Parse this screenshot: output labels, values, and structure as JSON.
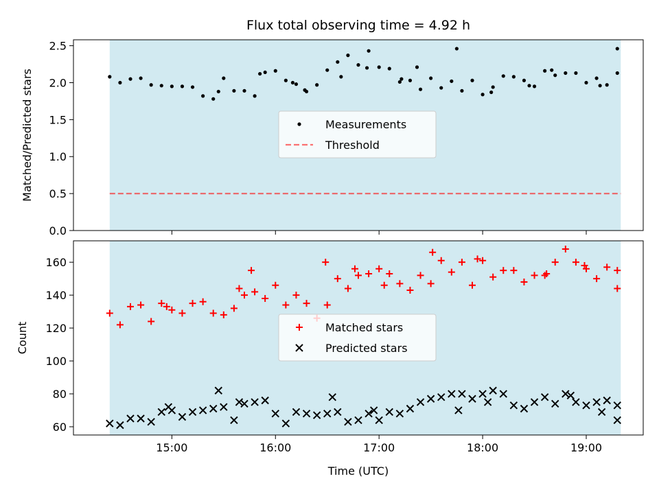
{
  "figure": {
    "title": "Flux total observing time = 4.92 h"
  },
  "colors": {
    "shade": "#add8e6",
    "measurement": "#000000",
    "threshold": "#ff0000",
    "matched": "#ff0000",
    "predicted": "#000000"
  },
  "chart_data": [
    {
      "type": "scatter",
      "ylabel": "Matched/Predicted stars",
      "xlabel": "",
      "xlim": [
        "14:03",
        "19:33"
      ],
      "ylim": [
        0,
        2.58
      ],
      "yticks": [
        0.0,
        0.5,
        1.0,
        1.5,
        2.0,
        2.5
      ],
      "ytick_labels": [
        "0.0",
        "0.5",
        "1.0",
        "1.5",
        "2.0",
        "2.5"
      ],
      "xticks": [
        "15:00",
        "16:00",
        "17:00",
        "18:00",
        "19:00"
      ],
      "shaded_span": [
        "14:24",
        "19:20"
      ],
      "legend": "center",
      "series": [
        {
          "name": "Measurements",
          "marker": "dot",
          "x": [
            "14:24",
            "14:30",
            "14:36",
            "14:42",
            "14:48",
            "14:54",
            "15:00",
            "15:06",
            "15:12",
            "15:18",
            "15:24",
            "15:30",
            "15:36",
            "15:42",
            "15:48",
            "15:54",
            "16:00",
            "16:06",
            "16:12",
            "16:18",
            "16:24",
            "16:30",
            "16:36",
            "16:42",
            "16:48",
            "16:54",
            "17:00",
            "17:06",
            "17:12",
            "17:18",
            "17:24",
            "17:30",
            "17:36",
            "17:42",
            "17:48",
            "17:54",
            "18:00",
            "18:06",
            "18:12",
            "18:18",
            "18:24",
            "18:30",
            "18:36",
            "18:42",
            "18:48",
            "18:54",
            "19:00",
            "19:06",
            "19:12",
            "19:18",
            "15:27",
            "15:51",
            "16:10",
            "16:17",
            "16:38",
            "16:53",
            "17:13",
            "17:22",
            "17:45",
            "18:05",
            "18:27",
            "18:40",
            "19:08",
            "19:18"
          ],
          "y": [
            2.08,
            2.0,
            2.05,
            2.06,
            1.97,
            1.96,
            1.95,
            1.95,
            1.94,
            1.82,
            1.78,
            2.06,
            1.89,
            1.89,
            1.82,
            2.14,
            2.16,
            2.03,
            1.98,
            1.88,
            1.97,
            2.17,
            2.28,
            2.37,
            2.24,
            2.43,
            2.21,
            2.19,
            2.01,
            2.03,
            1.91,
            2.06,
            1.93,
            2.02,
            1.89,
            2.03,
            1.84,
            1.94,
            2.09,
            2.08,
            2.03,
            1.95,
            2.16,
            2.1,
            2.13,
            2.13,
            2.0,
            2.06,
            1.97,
            2.13,
            1.88,
            2.12,
            2.0,
            1.9,
            2.08,
            2.2,
            2.05,
            2.21,
            2.46,
            1.87,
            1.96,
            2.17,
            1.96,
            2.46
          ]
        },
        {
          "name": "Threshold",
          "style": "dashed",
          "x": [
            "14:24",
            "19:20"
          ],
          "y": [
            0.5,
            0.5
          ]
        }
      ]
    },
    {
      "type": "scatter",
      "ylabel": "Count",
      "xlabel": "Time (UTC)",
      "xlim": [
        "14:03",
        "19:33"
      ],
      "ylim": [
        55,
        173
      ],
      "yticks": [
        60,
        80,
        100,
        120,
        140,
        160
      ],
      "ytick_labels": [
        "60",
        "80",
        "100",
        "120",
        "140",
        "160"
      ],
      "xticks": [
        "15:00",
        "16:00",
        "17:00",
        "18:00",
        "19:00"
      ],
      "xtick_labels": [
        "15:00",
        "16:00",
        "17:00",
        "18:00",
        "19:00"
      ],
      "shaded_span": [
        "14:24",
        "19:20"
      ],
      "legend": "center",
      "series": [
        {
          "name": "Matched stars",
          "marker": "plus",
          "x": [
            "14:24",
            "14:30",
            "14:36",
            "14:42",
            "14:48",
            "14:54",
            "15:00",
            "15:06",
            "15:12",
            "15:18",
            "15:24",
            "15:30",
            "15:36",
            "15:42",
            "15:48",
            "15:54",
            "16:00",
            "16:06",
            "16:12",
            "16:18",
            "16:24",
            "16:30",
            "16:36",
            "16:42",
            "16:48",
            "16:54",
            "17:00",
            "17:06",
            "17:12",
            "17:18",
            "17:24",
            "17:30",
            "17:36",
            "17:42",
            "17:48",
            "17:54",
            "18:00",
            "18:06",
            "18:12",
            "18:18",
            "18:24",
            "18:30",
            "18:36",
            "18:42",
            "18:48",
            "18:54",
            "19:00",
            "19:06",
            "19:12",
            "19:18",
            "14:57",
            "15:39",
            "15:46",
            "16:29",
            "16:46",
            "17:03",
            "17:31",
            "17:57",
            "18:37",
            "18:59",
            "19:18"
          ],
          "y": [
            129,
            122,
            133,
            134,
            124,
            135,
            131,
            129,
            135,
            136,
            129,
            128,
            132,
            140,
            142,
            138,
            146,
            134,
            140,
            135,
            126,
            134,
            150,
            144,
            152,
            153,
            156,
            153,
            147,
            143,
            152,
            147,
            161,
            154,
            160,
            146,
            161,
            151,
            155,
            155,
            148,
            152,
            152,
            160,
            168,
            160,
            156,
            150,
            157,
            144,
            133,
            144,
            155,
            160,
            156,
            146,
            166,
            162,
            153,
            158,
            155
          ]
        },
        {
          "name": "Predicted stars",
          "marker": "x",
          "x": [
            "14:24",
            "14:30",
            "14:36",
            "14:42",
            "14:48",
            "14:54",
            "15:00",
            "15:06",
            "15:12",
            "15:18",
            "15:24",
            "15:30",
            "15:36",
            "15:42",
            "15:48",
            "15:54",
            "16:00",
            "16:06",
            "16:12",
            "16:18",
            "16:24",
            "16:30",
            "16:36",
            "16:42",
            "16:48",
            "16:54",
            "17:00",
            "17:06",
            "17:12",
            "17:18",
            "17:24",
            "17:30",
            "17:36",
            "17:42",
            "17:48",
            "17:54",
            "18:00",
            "18:06",
            "18:12",
            "18:18",
            "18:24",
            "18:30",
            "18:36",
            "18:42",
            "18:48",
            "18:54",
            "19:00",
            "19:06",
            "19:12",
            "19:18",
            "14:58",
            "15:27",
            "15:39",
            "16:33",
            "16:57",
            "17:46",
            "18:03",
            "18:51",
            "19:09",
            "19:18"
          ],
          "y": [
            62,
            61,
            65,
            65,
            63,
            69,
            70,
            66,
            69,
            70,
            71,
            72,
            64,
            74,
            75,
            76,
            68,
            62,
            69,
            68,
            67,
            68,
            69,
            63,
            64,
            68,
            64,
            69,
            68,
            71,
            75,
            77,
            78,
            80,
            80,
            77,
            80,
            82,
            80,
            73,
            71,
            75,
            78,
            74,
            80,
            75,
            73,
            75,
            76,
            73,
            72,
            82,
            75,
            78,
            70,
            70,
            75,
            79,
            69,
            64
          ]
        }
      ]
    }
  ]
}
